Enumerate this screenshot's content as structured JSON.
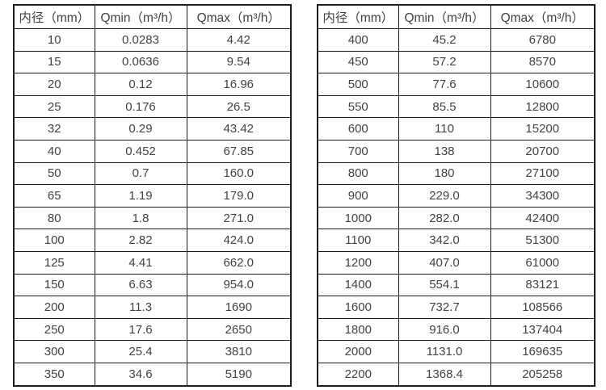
{
  "page": {
    "background": "#ffffff",
    "text_color": "#424242",
    "border_color": "#1c1c1c"
  },
  "tables": [
    {
      "name": "flow-range-table-small-diameters",
      "headers": [
        "内径（mm）",
        "Qmin（m³/h）",
        "Qmax（m³/h）"
      ],
      "rows": [
        [
          "10",
          "0.0283",
          "4.42"
        ],
        [
          "15",
          "0.0636",
          "9.54"
        ],
        [
          "20",
          "0.12",
          "16.96"
        ],
        [
          "25",
          "0.176",
          "26.5"
        ],
        [
          "32",
          "0.29",
          "43.42"
        ],
        [
          "40",
          "0.452",
          "67.85"
        ],
        [
          "50",
          "0.7",
          "160.0"
        ],
        [
          "65",
          "1.19",
          "179.0"
        ],
        [
          "80",
          "1.8",
          "271.0"
        ],
        [
          "100",
          "2.82",
          "424.0"
        ],
        [
          "125",
          "4.41",
          "662.0"
        ],
        [
          "150",
          "6.63",
          "954.0"
        ],
        [
          "200",
          "11.3",
          "1690"
        ],
        [
          "250",
          "17.6",
          "2650"
        ],
        [
          "300",
          "25.4",
          "3810"
        ],
        [
          "350",
          "34.6",
          "5190"
        ]
      ]
    },
    {
      "name": "flow-range-table-large-diameters",
      "headers": [
        "内径（mm）",
        "Qmin（m³/h）",
        "Qmax（m³/h）"
      ],
      "rows": [
        [
          "400",
          "45.2",
          "6780"
        ],
        [
          "450",
          "57.2",
          "8570"
        ],
        [
          "500",
          "77.6",
          "10600"
        ],
        [
          "550",
          "85.5",
          "12800"
        ],
        [
          "600",
          "110",
          "15200"
        ],
        [
          "700",
          "138",
          "20700"
        ],
        [
          "800",
          "180",
          "27100"
        ],
        [
          "900",
          "229.0",
          "34300"
        ],
        [
          "1000",
          "282.0",
          "42400"
        ],
        [
          "1100",
          "342.0",
          "51300"
        ],
        [
          "1200",
          "407.0",
          "61000"
        ],
        [
          "1400",
          "554.1",
          "83121"
        ],
        [
          "1600",
          "732.7",
          "108566"
        ],
        [
          "1800",
          "916.0",
          "137404"
        ],
        [
          "2000",
          "1131.0",
          "169635"
        ],
        [
          "2200",
          "1368.4",
          "205258"
        ]
      ]
    }
  ]
}
